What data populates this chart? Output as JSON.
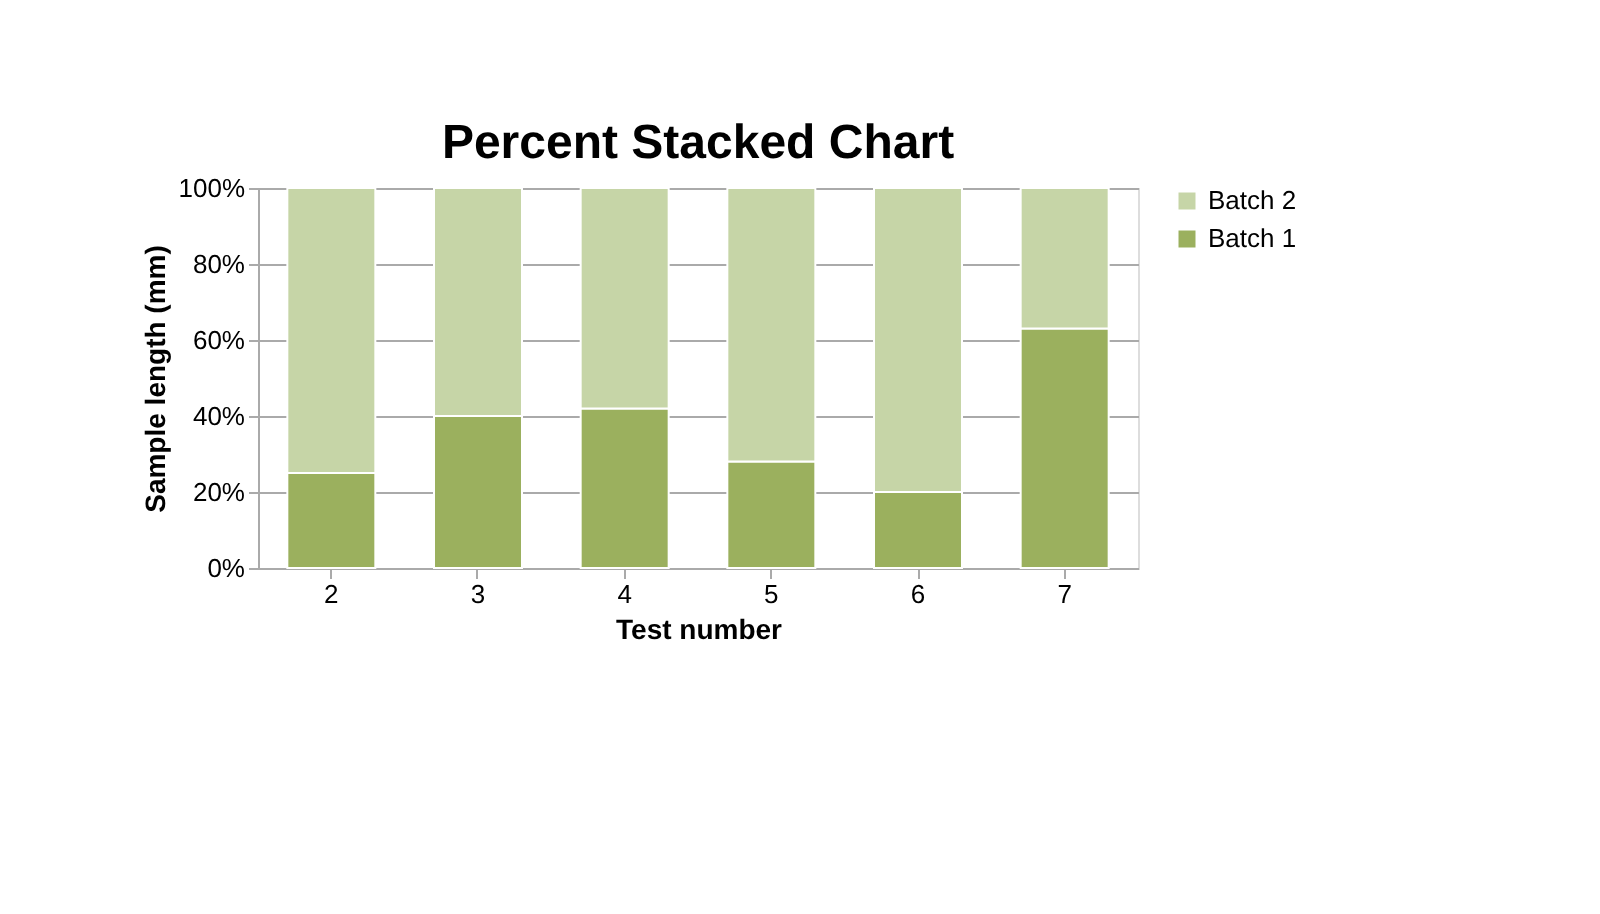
{
  "chart_data": {
    "type": "bar",
    "title": "Percent Stacked Chart",
    "xlabel": "Test number",
    "ylabel": "Sample length (mm)",
    "categories": [
      "2",
      "3",
      "4",
      "5",
      "6",
      "7"
    ],
    "series": [
      {
        "name": "Batch 1",
        "color": "#9bb05e",
        "values": [
          25,
          40,
          42,
          28,
          20,
          63
        ]
      },
      {
        "name": "Batch 2",
        "color": "#c6d5a7",
        "values": [
          75,
          60,
          58,
          72,
          80,
          37
        ]
      }
    ],
    "stacked": true,
    "ylim": [
      0,
      100
    ],
    "yticks": [
      {
        "value": 0,
        "label": "0%"
      },
      {
        "value": 20,
        "label": "20%"
      },
      {
        "value": 40,
        "label": "40%"
      },
      {
        "value": 60,
        "label": "60%"
      },
      {
        "value": 80,
        "label": "80%"
      },
      {
        "value": 100,
        "label": "100%"
      }
    ],
    "grid": "y",
    "legend": "right"
  }
}
